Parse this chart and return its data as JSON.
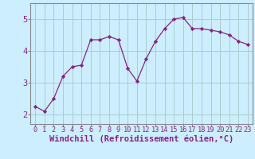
{
  "x": [
    0,
    1,
    2,
    3,
    4,
    5,
    6,
    7,
    8,
    9,
    10,
    11,
    12,
    13,
    14,
    15,
    16,
    17,
    18,
    19,
    20,
    21,
    22,
    23
  ],
  "y": [
    2.25,
    2.1,
    2.5,
    3.2,
    3.5,
    3.55,
    4.35,
    4.35,
    4.45,
    4.35,
    3.45,
    3.05,
    3.75,
    4.3,
    4.7,
    5.0,
    5.05,
    4.7,
    4.7,
    4.65,
    4.6,
    4.5,
    4.3,
    4.2
  ],
  "line_color": "#882288",
  "marker": "D",
  "marker_size": 2.2,
  "bg_color": "#cceeff",
  "grid_color": "#aacccc",
  "xlabel": "Windchill (Refroidissement éolien,°C)",
  "xlabel_fontsize": 7.5,
  "ylabel_ticks": [
    2,
    3,
    4,
    5
  ],
  "xtick_labels": [
    "0",
    "1",
    "2",
    "3",
    "4",
    "5",
    "6",
    "7",
    "8",
    "9",
    "10",
    "11",
    "12",
    "13",
    "14",
    "15",
    "16",
    "17",
    "18",
    "19",
    "20",
    "21",
    "22",
    "23"
  ],
  "ylim": [
    1.7,
    5.5
  ],
  "xlim": [
    -0.5,
    23.5
  ],
  "ytick_fontsize": 7.5,
  "xtick_fontsize": 6.2,
  "spine_color": "#888888"
}
